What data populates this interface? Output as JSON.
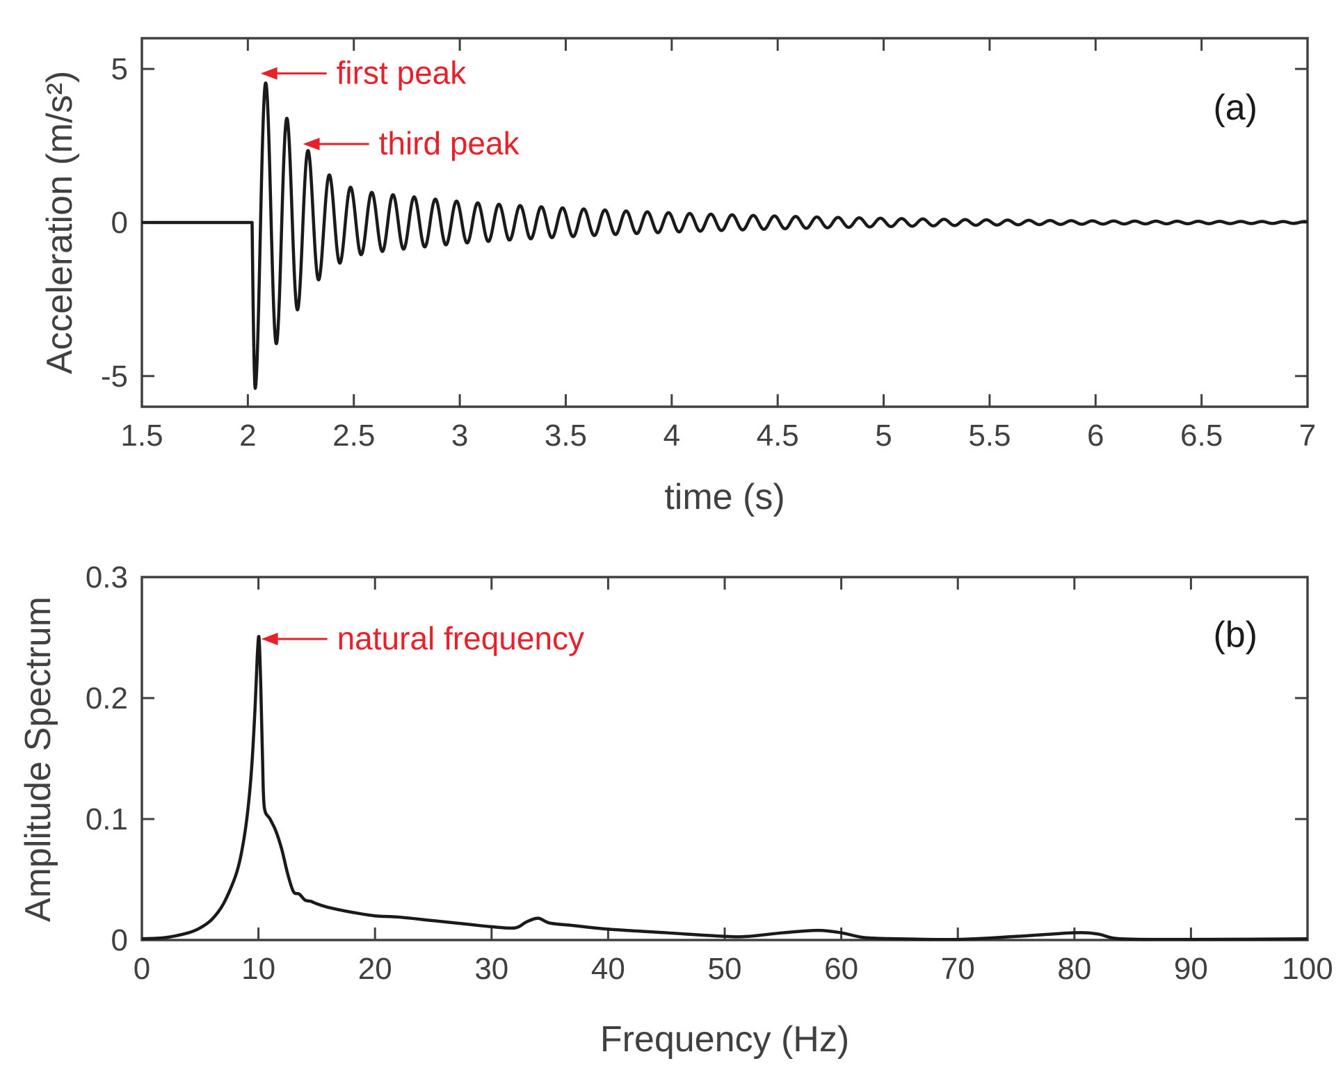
{
  "chart_data": [
    {
      "id": "a",
      "type": "line",
      "panel_label": "(a)",
      "xlabel": "time (s)",
      "ylabel": "Acceleration (m/s²)",
      "xlim": [
        1.5,
        7
      ],
      "ylim": [
        -6,
        6
      ],
      "xticks": [
        1.5,
        2,
        2.5,
        3,
        3.5,
        4,
        4.5,
        5,
        5.5,
        6,
        6.5,
        7
      ],
      "xtick_labels": [
        "1.5",
        "2",
        "2.5",
        "3",
        "3.5",
        "4",
        "4.5",
        "5",
        "5.5",
        "6",
        "6.5",
        "7"
      ],
      "yticks": [
        -5,
        0,
        5
      ],
      "ytick_labels": [
        "-5",
        "0",
        "5"
      ],
      "series": [
        {
          "name": "acceleration",
          "color": "#1a1a1a",
          "signal": {
            "start_time": 2.02,
            "end_time": 7.0,
            "baseline": 0,
            "frequency_hz": 10,
            "peaks": [
              {
                "x": 2.035,
                "y": -5.4
              },
              {
                "x": 2.06,
                "y": 4.9
              },
              {
                "x": 2.11,
                "y": -4.2
              },
              {
                "x": 2.16,
                "y": 3.7
              },
              {
                "x": 2.21,
                "y": -3.1
              },
              {
                "x": 2.26,
                "y": 2.6
              },
              {
                "x": 2.31,
                "y": -2.1
              },
              {
                "x": 2.36,
                "y": 1.65
              },
              {
                "x": 2.41,
                "y": -1.45
              },
              {
                "x": 2.46,
                "y": 1.2
              },
              {
                "x": 2.56,
                "y": 1.0
              },
              {
                "x": 2.76,
                "y": 0.85
              },
              {
                "x": 3.06,
                "y": 0.65
              },
              {
                "x": 3.56,
                "y": 0.45
              },
              {
                "x": 4.06,
                "y": 0.3
              },
              {
                "x": 4.56,
                "y": 0.2
              },
              {
                "x": 5.06,
                "y": 0.13
              },
              {
                "x": 5.56,
                "y": 0.08
              },
              {
                "x": 6.06,
                "y": 0.05
              },
              {
                "x": 6.96,
                "y": 0.03
              }
            ]
          }
        }
      ],
      "annotations": [
        {
          "text": "first peak",
          "x": 2.06,
          "y": 4.9
        },
        {
          "text": "third peak",
          "x": 2.26,
          "y": 2.6
        }
      ]
    },
    {
      "id": "b",
      "type": "line",
      "panel_label": "(b)",
      "xlabel": "Frequency (Hz)",
      "ylabel": "Amplitude Spectrum",
      "xlim": [
        0,
        100
      ],
      "ylim": [
        0,
        0.3
      ],
      "xticks": [
        0,
        10,
        20,
        30,
        40,
        50,
        60,
        70,
        80,
        90,
        100
      ],
      "xtick_labels": [
        "0",
        "10",
        "20",
        "30",
        "40",
        "50",
        "60",
        "70",
        "80",
        "90",
        "100"
      ],
      "yticks": [
        0,
        0.1,
        0.2,
        0.3
      ],
      "ytick_labels": [
        "0",
        "0.1",
        "0.2",
        "0.3"
      ],
      "series": [
        {
          "name": "amplitude spectrum",
          "color": "#1a1a1a",
          "x": [
            0,
            2,
            4,
            5,
            6,
            7,
            8,
            8.5,
            9,
            9.4,
            9.7,
            9.9,
            10.05,
            10.2,
            10.35,
            10.5,
            11,
            11.5,
            12,
            12.5,
            13,
            13.5,
            14,
            14.5,
            15,
            16,
            18,
            20,
            22,
            25,
            28,
            30,
            32,
            33,
            34,
            35,
            37,
            40,
            45,
            50,
            52,
            55,
            58,
            60,
            62,
            65,
            70,
            75,
            80,
            82,
            84,
            90,
            100
          ],
          "y": [
            0.001,
            0.002,
            0.006,
            0.01,
            0.017,
            0.03,
            0.052,
            0.07,
            0.1,
            0.14,
            0.19,
            0.235,
            0.25,
            0.21,
            0.15,
            0.11,
            0.1,
            0.09,
            0.075,
            0.055,
            0.04,
            0.038,
            0.033,
            0.032,
            0.03,
            0.027,
            0.023,
            0.02,
            0.019,
            0.016,
            0.013,
            0.011,
            0.01,
            0.015,
            0.018,
            0.014,
            0.012,
            0.009,
            0.006,
            0.003,
            0.003,
            0.006,
            0.008,
            0.006,
            0.002,
            0.001,
            0.0005,
            0.003,
            0.006,
            0.005,
            0.001,
            0.0005,
            0.001
          ]
        }
      ],
      "annotations": [
        {
          "text": "natural frequency",
          "x": 10,
          "y": 0.25
        }
      ]
    }
  ]
}
